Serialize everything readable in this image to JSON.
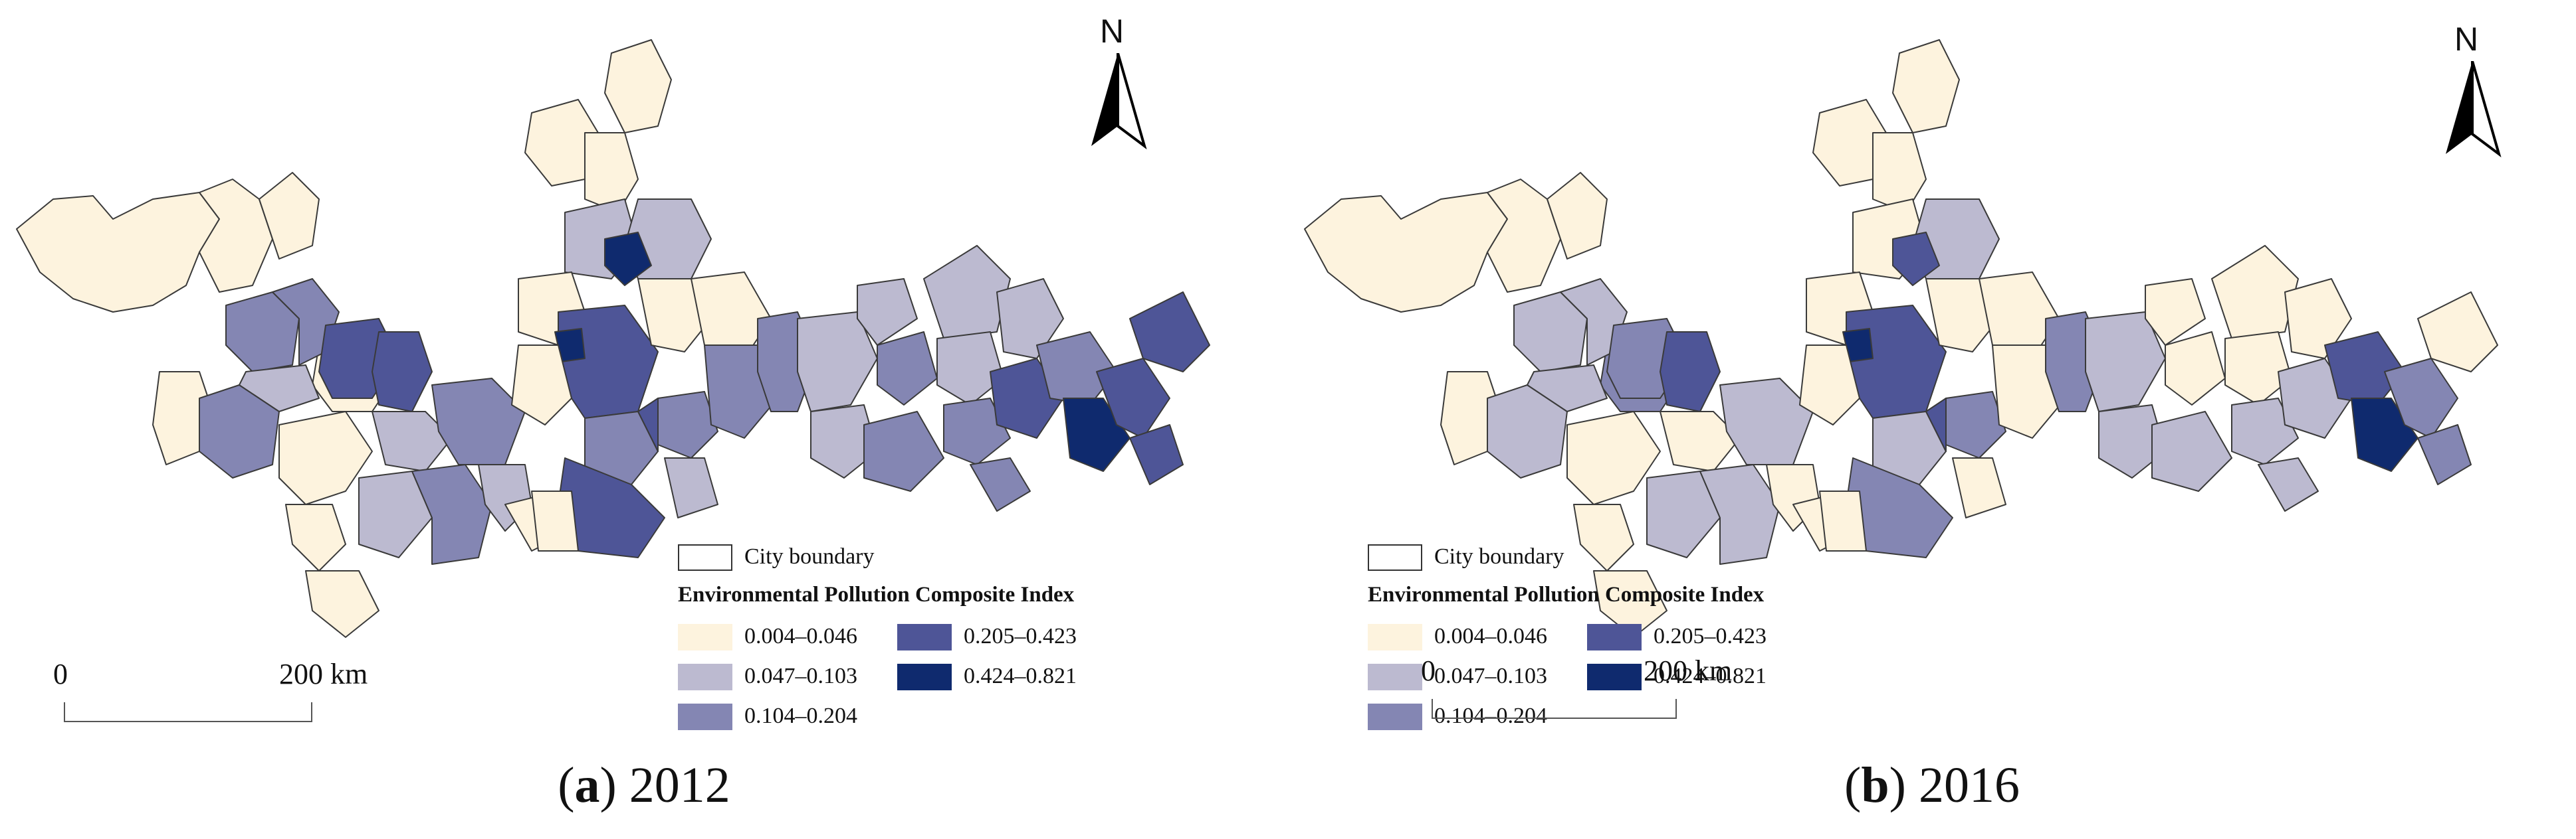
{
  "panels": [
    {
      "caption_letter": "a",
      "caption_text": ") 2012",
      "caption_open": "(",
      "north_label": "N",
      "legend": {
        "boundary_label": "City boundary",
        "title": "Environmental Pollution Composite Index",
        "classes": [
          {
            "label": "0.004–0.046",
            "color": "#fdf3de"
          },
          {
            "label": "0.047–0.103",
            "color": "#bcbad0"
          },
          {
            "label": "0.104–0.204",
            "color": "#8486b3"
          },
          {
            "label": "0.205–0.423",
            "color": "#4e5597"
          },
          {
            "label": "0.424–0.821",
            "color": "#0f2a6e"
          }
        ]
      },
      "scale": {
        "start": "0",
        "end": "200 km"
      }
    },
    {
      "caption_letter": "b",
      "caption_text": ") 2016",
      "caption_open": "(",
      "north_label": "N",
      "legend": {
        "boundary_label": "City boundary",
        "title": "Environmental Pollution Composite Index",
        "classes": [
          {
            "label": "0.004–0.046",
            "color": "#fdf3de"
          },
          {
            "label": "0.047–0.103",
            "color": "#bcbad0"
          },
          {
            "label": "0.104–0.204",
            "color": "#8486b3"
          },
          {
            "label": "0.205–0.423",
            "color": "#4e5597"
          },
          {
            "label": "0.424–0.821",
            "color": "#0f2a6e"
          }
        ]
      },
      "scale": {
        "start": "0",
        "end": "200 km"
      }
    }
  ]
}
